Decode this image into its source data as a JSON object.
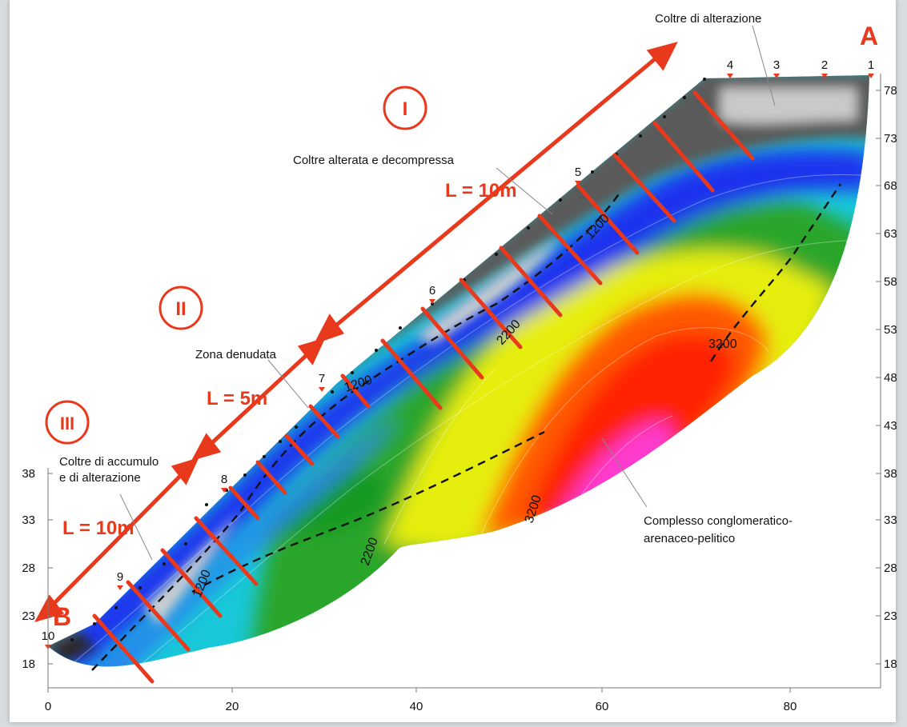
{
  "section": {
    "end_left": "B",
    "end_right": "A"
  },
  "axes": {
    "x_ticks": [
      "0",
      "20",
      "40",
      "60",
      "80"
    ],
    "y_ticks_right": [
      "78",
      "73",
      "68",
      "63",
      "58",
      "53",
      "48",
      "43",
      "38",
      "33",
      "28",
      "23",
      "18"
    ],
    "y_ticks_left": [
      "38",
      "33",
      "28",
      "23",
      "18"
    ]
  },
  "electrodes": [
    "1",
    "2",
    "3",
    "4",
    "5",
    "6",
    "7",
    "8",
    "9",
    "10"
  ],
  "contours": [
    "1200",
    "1200",
    "1200",
    "2200",
    "2200",
    "3200",
    "3200"
  ],
  "zones": [
    {
      "roman": "I",
      "length": "L = 10m"
    },
    {
      "roman": "II",
      "length": "L = 5m"
    },
    {
      "roman": "III",
      "length": "L = 10m"
    }
  ],
  "annotations": {
    "coltre_alterazione": "Coltre di alterazione",
    "coltre_alterata": "Coltre alterata e decompressa",
    "zona_denudata": "Zona denudata",
    "coltre_accumulo_1": "Coltre di accumulo",
    "coltre_accumulo_2": "e di alterazione",
    "complesso_1": "Complesso conglomeratico-",
    "complesso_2": "arenaceo-pelitico"
  },
  "colors": {
    "accent": "#e8391d",
    "resistivity_scale": [
      "#3a3a3a",
      "#c8c8c8",
      "#1e2ee8",
      "#18e6e6",
      "#15a020",
      "#eef000",
      "#ff3a00",
      "#ff40d0"
    ]
  }
}
